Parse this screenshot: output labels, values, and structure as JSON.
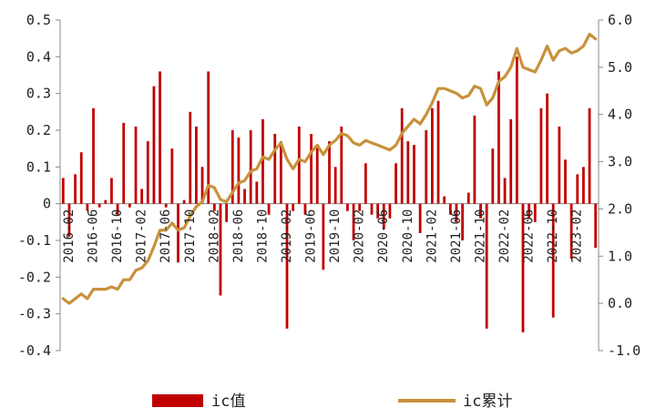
{
  "chart_data": {
    "type": "bar+line",
    "x_tick_labels": [
      "2016-02",
      "2016-06",
      "2016-10",
      "2017-02",
      "2017-06",
      "2017-10",
      "2018-02",
      "2018-06",
      "2018-10",
      "2019-02",
      "2019-06",
      "2019-10",
      "2020-02",
      "2020-06",
      "2020-10",
      "2021-02",
      "2021-06",
      "2021-10",
      "2022-02",
      "2022-06",
      "2022-10",
      "2023-02"
    ],
    "months": [
      "2016-01",
      "2016-02",
      "2016-03",
      "2016-04",
      "2016-05",
      "2016-06",
      "2016-07",
      "2016-08",
      "2016-09",
      "2016-10",
      "2016-11",
      "2016-12",
      "2017-01",
      "2017-02",
      "2017-03",
      "2017-04",
      "2017-05",
      "2017-06",
      "2017-07",
      "2017-08",
      "2017-09",
      "2017-10",
      "2017-11",
      "2017-12",
      "2018-01",
      "2018-02",
      "2018-03",
      "2018-04",
      "2018-05",
      "2018-06",
      "2018-07",
      "2018-08",
      "2018-09",
      "2018-10",
      "2018-11",
      "2018-12",
      "2019-01",
      "2019-02",
      "2019-03",
      "2019-04",
      "2019-05",
      "2019-06",
      "2019-07",
      "2019-08",
      "2019-09",
      "2019-10",
      "2019-11",
      "2019-12",
      "2020-01",
      "2020-02",
      "2020-03",
      "2020-04",
      "2020-05",
      "2020-06",
      "2020-07",
      "2020-08",
      "2020-09",
      "2020-10",
      "2020-11",
      "2020-12",
      "2021-01",
      "2021-02",
      "2021-03",
      "2021-04",
      "2021-05",
      "2021-06",
      "2021-07",
      "2021-08",
      "2021-09",
      "2021-10",
      "2021-11",
      "2021-12",
      "2022-01",
      "2022-02",
      "2022-03",
      "2022-04",
      "2022-05",
      "2022-06",
      "2022-07",
      "2022-08",
      "2022-09",
      "2022-10",
      "2022-11",
      "2022-12",
      "2023-01",
      "2023-02",
      "2023-03",
      "2023-04",
      "2023-05"
    ],
    "series": [
      {
        "name": "ic值",
        "type": "bar",
        "axis": "left",
        "color": "#c00000",
        "values": [
          0.07,
          -0.09,
          0.08,
          0.14,
          -0.02,
          0.26,
          -0.01,
          0.01,
          0.07,
          -0.03,
          0.22,
          -0.01,
          0.21,
          0.04,
          0.17,
          0.32,
          0.36,
          -0.01,
          0.15,
          -0.16,
          0.01,
          0.25,
          0.21,
          0.1,
          0.36,
          -0.02,
          -0.25,
          -0.05,
          0.2,
          0.18,
          0.04,
          0.2,
          0.06,
          0.23,
          -0.03,
          0.19,
          0.17,
          -0.34,
          -0.02,
          0.21,
          -0.03,
          0.19,
          0.16,
          -0.18,
          0.17,
          0.1,
          0.21,
          -0.02,
          -0.1,
          -0.02,
          0.11,
          -0.03,
          -0.04,
          -0.07,
          -0.04,
          0.11,
          0.26,
          0.17,
          0.16,
          -0.08,
          0.2,
          0.26,
          0.28,
          0.02,
          -0.03,
          -0.05,
          -0.1,
          0.03,
          0.24,
          -0.04,
          -0.34,
          0.15,
          0.36,
          0.07,
          0.23,
          0.4,
          -0.35,
          -0.04,
          -0.05,
          0.26,
          0.3,
          -0.31,
          0.21,
          0.12,
          -0.15,
          0.08,
          0.1,
          0.26,
          -0.12
        ]
      },
      {
        "name": "ic累计",
        "type": "line",
        "axis": "right",
        "color": "#c8913a",
        "values": [
          0.1,
          0.0,
          0.1,
          0.2,
          0.1,
          0.3,
          0.3,
          0.3,
          0.35,
          0.3,
          0.5,
          0.5,
          0.7,
          0.75,
          0.9,
          1.2,
          1.55,
          1.55,
          1.7,
          1.55,
          1.6,
          1.85,
          2.05,
          2.15,
          2.5,
          2.45,
          2.2,
          2.15,
          2.35,
          2.55,
          2.6,
          2.8,
          2.85,
          3.1,
          3.05,
          3.25,
          3.4,
          3.05,
          2.85,
          3.05,
          3.0,
          3.2,
          3.35,
          3.15,
          3.35,
          3.45,
          3.6,
          3.55,
          3.4,
          3.35,
          3.45,
          3.4,
          3.35,
          3.3,
          3.25,
          3.35,
          3.6,
          3.75,
          3.9,
          3.8,
          4.0,
          4.25,
          4.55,
          4.55,
          4.5,
          4.45,
          4.35,
          4.4,
          4.6,
          4.55,
          4.2,
          4.35,
          4.7,
          4.8,
          5.0,
          5.4,
          5.0,
          4.95,
          4.9,
          5.15,
          5.45,
          5.15,
          5.35,
          5.4,
          5.3,
          5.35,
          5.45,
          5.7,
          5.6
        ]
      }
    ],
    "y_left": {
      "min": -0.4,
      "max": 0.5,
      "ticks": [
        "0.5",
        "0.4",
        "0.3",
        "0.2",
        "0.1",
        "0",
        "-0.1",
        "-0.2",
        "-0.3",
        "-0.4"
      ]
    },
    "y_right": {
      "min": -1.0,
      "max": 6.0,
      "ticks": [
        "6.0",
        "5.0",
        "4.0",
        "3.0",
        "2.0",
        "1.0",
        "0.0",
        "-1.0"
      ]
    },
    "legend": {
      "position": "bottom"
    },
    "grid": false
  }
}
